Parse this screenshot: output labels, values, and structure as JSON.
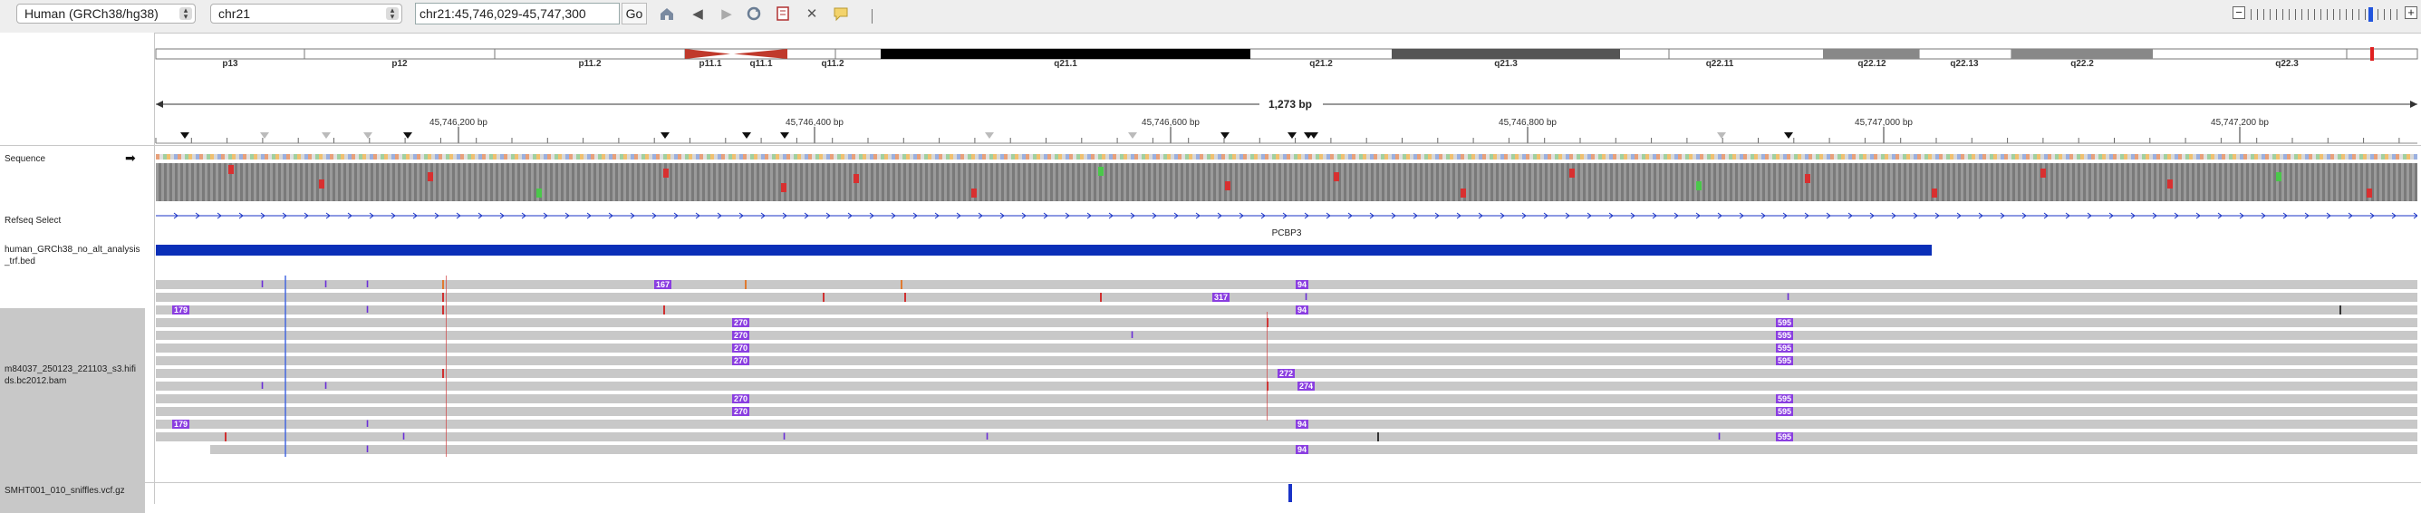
{
  "toolbar": {
    "genome": "Human (GRCh38/hg38)",
    "chromosome": "chr21",
    "locus": "chr21:45,746,029-45,747,300",
    "go_label": "Go",
    "zoom_minus": "−",
    "zoom_plus": "+"
  },
  "ideogram": {
    "bands": [
      "p13",
      "p12",
      "p11.2",
      "p11.1",
      "q11.1",
      "q11.2",
      "q21.1",
      "q21.2",
      "q21.3",
      "q22.11",
      "q22.12",
      "q22.13",
      "q22.2",
      "q22.3"
    ]
  },
  "ruler": {
    "span_label": "1,273 bp",
    "ticks": [
      "45,746,200 bp",
      "45,746,400 bp",
      "45,746,600 bp",
      "45,746,800 bp",
      "45,747,000 bp",
      "45,747,200 bp"
    ]
  },
  "tracks": {
    "sequence": "Sequence",
    "refseq": "Refseq Select",
    "trf_line1": "human_GRCh38_no_alt_analysis",
    "trf_line2": "_trf.bed",
    "bam_line1": "m84037_250123_221103_s3.hifi",
    "bam_line2": "ds.bc2012.bam",
    "vcf": "SMHT001_010_sniffles.vcf.gz"
  },
  "gene": {
    "name": "PCBP3"
  },
  "insertion_badges": [
    "167",
    "94",
    "317",
    "179",
    "270",
    "595",
    "272",
    "274"
  ],
  "colors": {
    "trf_bar": "#0a2fb8",
    "insertion": "#8a3ee0",
    "read": "#c8c8c8",
    "variant": "#1a33c7",
    "centromere": "#c0392b"
  }
}
